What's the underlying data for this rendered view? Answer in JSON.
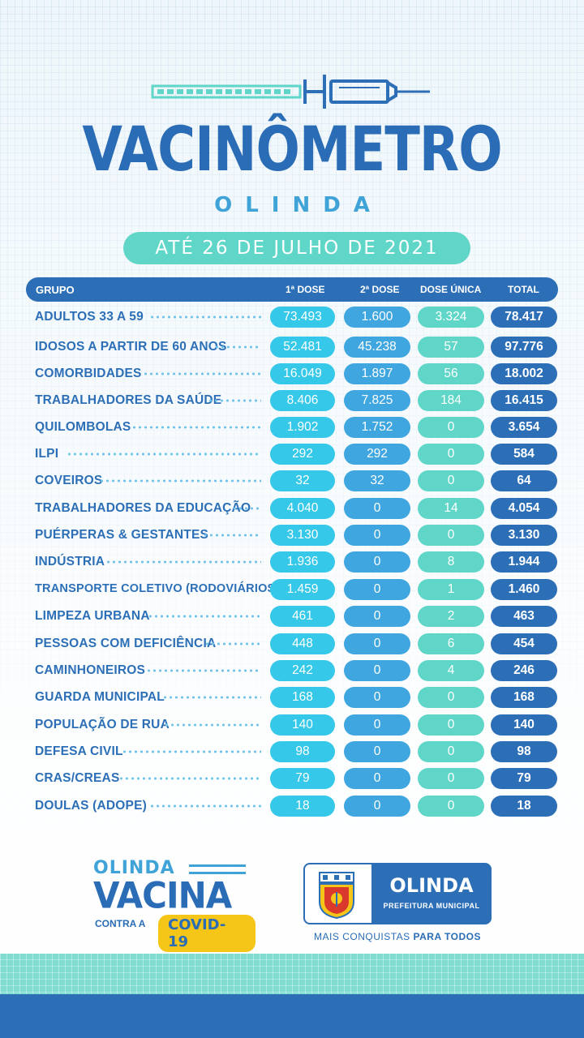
{
  "header": {
    "title": "VACINÔMETRO",
    "subtitle": "OLINDA",
    "date": "ATÉ 26 DE JULHO DE 2021"
  },
  "table": {
    "columns": [
      "GRUPO",
      "1ª DOSE",
      "2ª DOSE",
      "DOSE ÚNICA",
      "TOTAL"
    ],
    "rows": [
      {
        "group": "ADULTOS 33 A 59",
        "dose1": "73.493",
        "dose2": "1.600",
        "single": "3.324",
        "total": "78.417"
      },
      {
        "group": "IDOSOS A PARTIR DE 60 ANOS",
        "dose1": "52.481",
        "dose2": "45.238",
        "single": "57",
        "total": "97.776"
      },
      {
        "group": "COMORBIDADES",
        "dose1": "16.049",
        "dose2": "1.897",
        "single": "56",
        "total": "18.002"
      },
      {
        "group": "TRABALHADORES DA SAÚDE",
        "dose1": "8.406",
        "dose2": "7.825",
        "single": "184",
        "total": "16.415"
      },
      {
        "group": "QUILOMBOLAS",
        "dose1": "1.902",
        "dose2": "1.752",
        "single": "0",
        "total": "3.654"
      },
      {
        "group": "ILPI",
        "dose1": "292",
        "dose2": "292",
        "single": "0",
        "total": "584"
      },
      {
        "group": "COVEIROS",
        "dose1": "32",
        "dose2": "32",
        "single": "0",
        "total": "64"
      },
      {
        "group": "TRABALHADORES DA EDUCAÇÃO",
        "dose1": "4.040",
        "dose2": "0",
        "single": "14",
        "total": "4.054"
      },
      {
        "group": "PUÉRPERAS & GESTANTES",
        "dose1": "3.130",
        "dose2": "0",
        "single": "0",
        "total": "3.130"
      },
      {
        "group": "INDÚSTRIA",
        "dose1": "1.936",
        "dose2": "0",
        "single": "8",
        "total": "1.944"
      },
      {
        "group": "TRANSPORTE COLETIVO (RODOVIÁRIOS)",
        "dose1": "1.459",
        "dose2": "0",
        "single": "1",
        "total": "1.460"
      },
      {
        "group": "LIMPEZA URBANA",
        "dose1": "461",
        "dose2": "0",
        "single": "2",
        "total": "463"
      },
      {
        "group": "PESSOAS COM DEFICIÊNCIA",
        "dose1": "448",
        "dose2": "0",
        "single": "6",
        "total": "454"
      },
      {
        "group": "CAMINHONEIROS",
        "dose1": "242",
        "dose2": "0",
        "single": "4",
        "total": "246"
      },
      {
        "group": "GUARDA MUNICIPAL",
        "dose1": "168",
        "dose2": "0",
        "single": "0",
        "total": "168"
      },
      {
        "group": "POPULAÇÃO DE RUA",
        "dose1": "140",
        "dose2": "0",
        "single": "0",
        "total": "140"
      },
      {
        "group": "DEFESA CIVIL",
        "dose1": "98",
        "dose2": "0",
        "single": "0",
        "total": "98"
      },
      {
        "group": "CRAS/CREAS",
        "dose1": "79",
        "dose2": "0",
        "single": "0",
        "total": "79"
      },
      {
        "group": "DOULAS (ADOPE)",
        "dose1": "18",
        "dose2": "0",
        "single": "0",
        "total": "18"
      }
    ]
  },
  "campaign_logo": {
    "line1": "OLINDA",
    "line2": "VACINA",
    "line3": "CONTRA A",
    "badge": "COVID-19"
  },
  "city_logo": {
    "name": "OLINDA",
    "sub": "PREFEITURA MUNICIPAL",
    "slogan_prefix": "MAIS CONQUISTAS ",
    "slogan_bold": "PARA TODOS"
  },
  "colors": {
    "primary_blue": "#2c6fb7",
    "cyan": "#35c8e8",
    "sky": "#3fa6e0",
    "teal": "#5fd6c8",
    "yellow": "#f5c518"
  },
  "icons": [
    "syringe-icon",
    "coat-of-arms-icon"
  ]
}
